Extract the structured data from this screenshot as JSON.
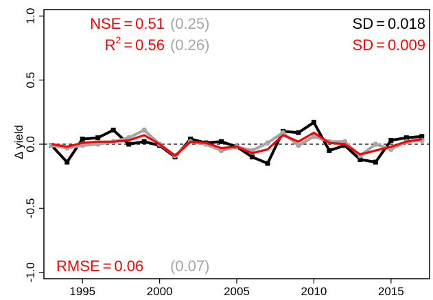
{
  "chart_data": {
    "type": "line",
    "xlabel": "",
    "ylabel": "Δ yield",
    "xlim": [
      1992.5,
      2017.5
    ],
    "ylim": [
      -1.05,
      1.05
    ],
    "xticks": [
      1995,
      2000,
      2005,
      2010,
      2015
    ],
    "xtick_labels": [
      "1995",
      "2000",
      "2005",
      "2010",
      "2015"
    ],
    "yticks": [
      -1.0,
      -0.5,
      0.0,
      0.5,
      1.0
    ],
    "ytick_labels": [
      "-1.0",
      "-0.5",
      "0.0",
      "0.5",
      "1.0"
    ],
    "zero_line": "dashed",
    "x": [
      1993,
      1994,
      1995,
      1996,
      1997,
      1998,
      1999,
      2000,
      2001,
      2002,
      2003,
      2004,
      2005,
      2006,
      2007,
      2008,
      2009,
      2010,
      2011,
      2012,
      2013,
      2014,
      2015,
      2016,
      2017
    ],
    "series": [
      {
        "color": "#000000",
        "marker": "square",
        "values": [
          -0.01,
          -0.14,
          0.04,
          0.05,
          0.11,
          0.0,
          0.02,
          -0.01,
          -0.1,
          0.04,
          0.01,
          0.02,
          -0.02,
          -0.1,
          -0.15,
          0.1,
          0.09,
          0.17,
          -0.05,
          -0.01,
          -0.12,
          -0.14,
          0.03,
          0.05,
          0.06
        ]
      },
      {
        "color": "#ff0000",
        "marker": "none",
        "values": [
          0.0,
          -0.02,
          0.01,
          0.02,
          0.02,
          0.03,
          0.07,
          0.0,
          -0.09,
          0.02,
          0.01,
          -0.03,
          -0.02,
          -0.07,
          -0.04,
          0.07,
          0.02,
          0.09,
          0.01,
          0.0,
          -0.08,
          -0.05,
          -0.02,
          0.02,
          0.04
        ]
      },
      {
        "color": "#a6a6a6",
        "marker": "circle",
        "values": [
          -0.01,
          -0.03,
          -0.01,
          0.0,
          0.02,
          0.05,
          0.11,
          0.0,
          -0.09,
          0.02,
          0.0,
          -0.05,
          -0.02,
          -0.05,
          0.01,
          0.09,
          -0.01,
          0.06,
          0.02,
          0.02,
          -0.09,
          0.0,
          -0.04,
          0.02,
          0.03
        ]
      }
    ],
    "annotations": {
      "nse": {
        "label": "NSE",
        "eq": "=",
        "value": "0.51",
        "paren": "(0.25)"
      },
      "r2": {
        "label": "R",
        "sup": "2",
        "eq": "=",
        "value": "0.56",
        "paren": "(0.26)"
      },
      "sd_black": {
        "label": "SD",
        "eq": "=",
        "value": "0.018"
      },
      "sd_red": {
        "label": "SD",
        "eq": "=",
        "value": "0.009"
      },
      "rmse": {
        "label": "RMSE",
        "eq": "=",
        "value": "0.06",
        "paren": "(0.07)"
      }
    },
    "colors": {
      "black": "#000000",
      "red": "#ff0000",
      "gray": "#a6a6a6"
    },
    "grid": false,
    "legend": "none"
  }
}
